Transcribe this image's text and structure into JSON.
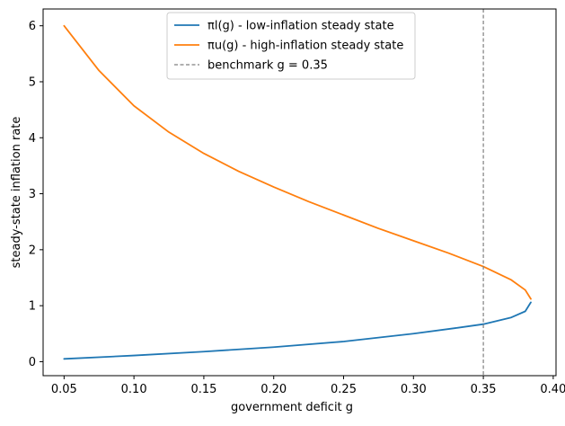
{
  "chart_data": {
    "type": "line",
    "title": "",
    "xlabel": "government deficit g",
    "ylabel": "steady-state inflation rate",
    "xlim": [
      0.035,
      0.402
    ],
    "ylim": [
      -0.25,
      6.3
    ],
    "xticks": [
      "0.05",
      "0.10",
      "0.15",
      "0.20",
      "0.25",
      "0.30",
      "0.35",
      "0.40"
    ],
    "yticks": [
      "0",
      "1",
      "2",
      "3",
      "4",
      "5",
      "6"
    ],
    "grid": false,
    "legend_position": "upper-center",
    "series": [
      {
        "name": "πl(g) - low-inflation steady state",
        "color": "#1f77b4",
        "style": "solid",
        "x": [
          0.05,
          0.1,
          0.15,
          0.2,
          0.25,
          0.3,
          0.33,
          0.35,
          0.37,
          0.38,
          0.384
        ],
        "y": [
          0.05,
          0.11,
          0.18,
          0.26,
          0.36,
          0.5,
          0.6,
          0.67,
          0.79,
          0.9,
          1.06
        ]
      },
      {
        "name": "πu(g) - high-inflation steady state",
        "color": "#ff7f0e",
        "style": "solid",
        "x": [
          0.05,
          0.075,
          0.1,
          0.125,
          0.15,
          0.175,
          0.2,
          0.225,
          0.25,
          0.275,
          0.3,
          0.325,
          0.35,
          0.37,
          0.38,
          0.384
        ],
        "y": [
          6.0,
          5.2,
          4.57,
          4.1,
          3.72,
          3.4,
          3.12,
          2.86,
          2.62,
          2.38,
          2.16,
          1.94,
          1.7,
          1.46,
          1.28,
          1.12
        ]
      },
      {
        "name": "benchmark g = 0.35",
        "color": "#808080",
        "style": "dashed",
        "vline_x": 0.35
      }
    ]
  }
}
